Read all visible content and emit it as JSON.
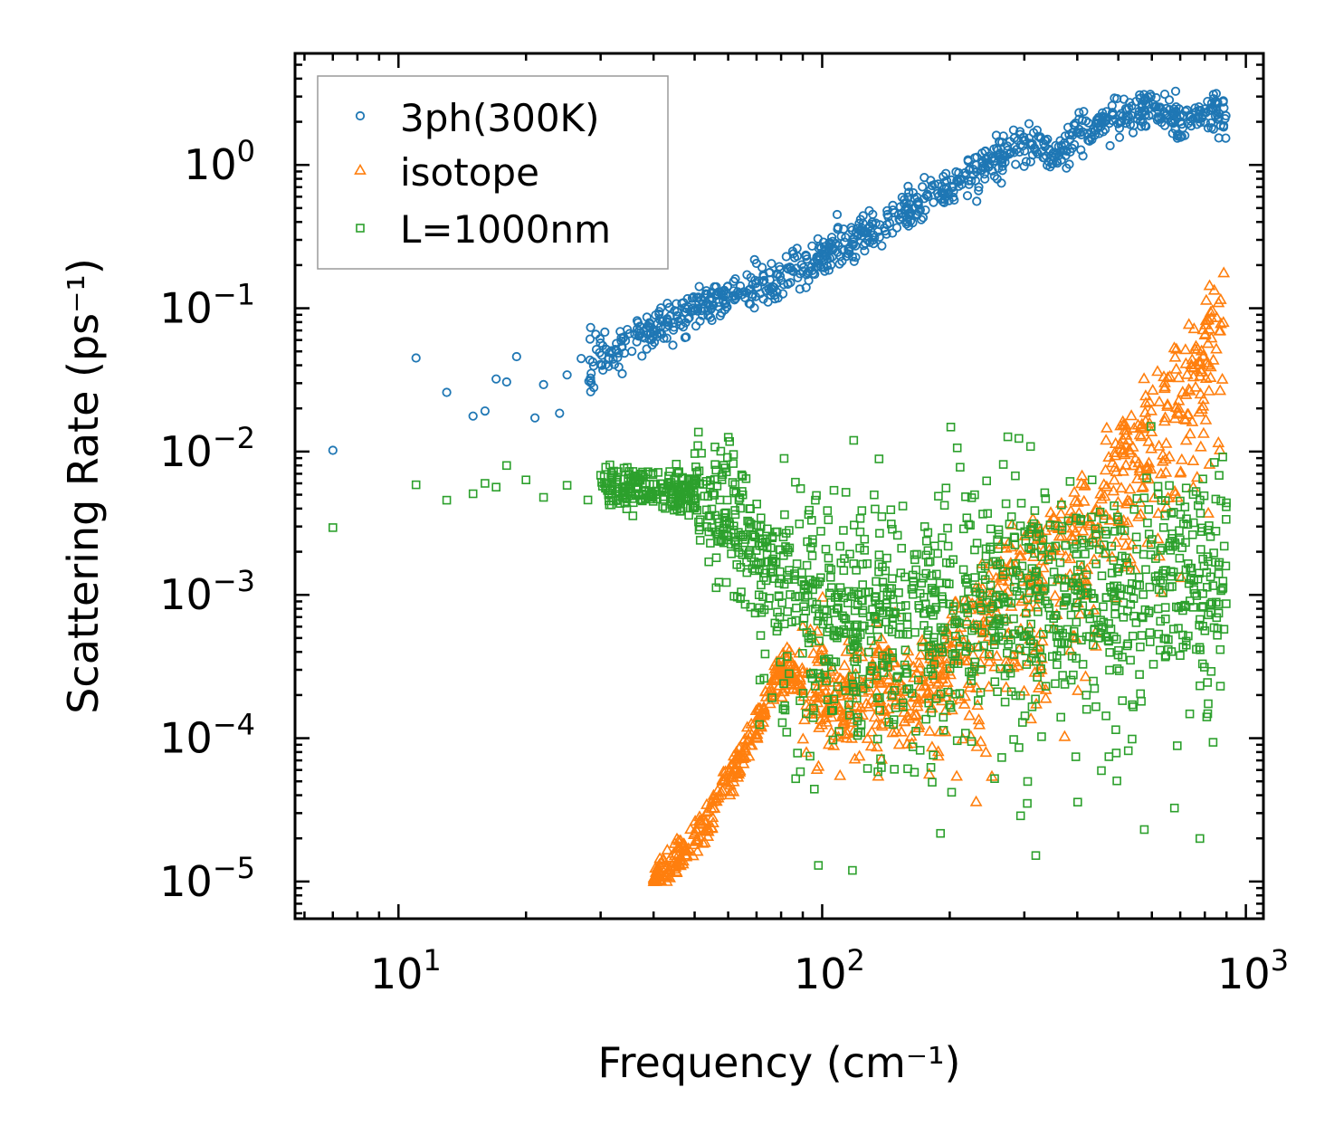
{
  "chart_data": {
    "type": "scatter",
    "xscale": "log",
    "yscale": "log",
    "xlabel": "Frequency (cm⁻¹)",
    "ylabel": "Scattering Rate (ps⁻¹)",
    "xlim": [
      5.7,
      1100
    ],
    "ylim": [
      5.5e-06,
      6.0
    ],
    "legend_position": "top-left",
    "x_ticks": [
      {
        "base": "10",
        "exp": "1",
        "value": 10
      },
      {
        "base": "10",
        "exp": "2",
        "value": 100
      },
      {
        "base": "10",
        "exp": "3",
        "value": 1000
      }
    ],
    "y_ticks": [
      {
        "base": "10",
        "exp": "0",
        "value": 1
      },
      {
        "base": "10",
        "exp": "−1",
        "value": 0.1
      },
      {
        "base": "10",
        "exp": "−2",
        "value": 0.01
      },
      {
        "base": "10",
        "exp": "−3",
        "value": 0.001
      },
      {
        "base": "10",
        "exp": "−4",
        "value": 0.0001
      },
      {
        "base": "10",
        "exp": "−5",
        "value": 1e-05
      }
    ],
    "series": [
      {
        "name": "3ph(300K)",
        "marker": "circle",
        "color": "#1f77b4",
        "trend_points": [
          [
            7,
            0.015
          ],
          [
            11,
            0.035
          ],
          [
            15,
            0.02
          ],
          [
            18,
            0.03
          ],
          [
            22,
            0.03
          ],
          [
            28,
            0.045
          ],
          [
            32,
            0.05
          ],
          [
            40,
            0.07
          ],
          [
            50,
            0.1
          ],
          [
            60,
            0.12
          ],
          [
            80,
            0.17
          ],
          [
            100,
            0.22
          ],
          [
            130,
            0.35
          ],
          [
            160,
            0.5
          ],
          [
            200,
            0.7
          ],
          [
            250,
            1.0
          ],
          [
            300,
            1.5
          ],
          [
            350,
            1.2
          ],
          [
            400,
            1.6
          ],
          [
            500,
            2.2
          ],
          [
            600,
            2.6
          ],
          [
            700,
            2.0
          ],
          [
            800,
            2.4
          ],
          [
            900,
            2.0
          ]
        ]
      },
      {
        "name": "isotope",
        "marker": "triangle",
        "color": "#ff7f0e",
        "trend_points": [
          [
            40,
            1e-05
          ],
          [
            50,
            2e-05
          ],
          [
            60,
            5e-05
          ],
          [
            70,
            0.00012
          ],
          [
            80,
            0.0003
          ],
          [
            100,
            0.0002
          ],
          [
            130,
            0.0002
          ],
          [
            160,
            0.0003
          ],
          [
            200,
            0.0006
          ],
          [
            250,
            0.002
          ],
          [
            300,
            0.003
          ],
          [
            400,
            0.005
          ],
          [
            500,
            0.02
          ],
          [
            600,
            0.03
          ],
          [
            700,
            0.05
          ],
          [
            800,
            0.1
          ],
          [
            880,
            0.24
          ]
        ]
      },
      {
        "name": "L=1000nm",
        "marker": "square",
        "color": "#2ca02c",
        "trend_points": [
          [
            7,
            0.0032
          ],
          [
            11,
            0.0063
          ],
          [
            15,
            0.0058
          ],
          [
            20,
            0.0058
          ],
          [
            30,
            0.0055
          ],
          [
            40,
            0.0055
          ],
          [
            50,
            0.005
          ],
          [
            60,
            0.003
          ],
          [
            80,
            0.0012
          ],
          [
            100,
            0.0009
          ],
          [
            130,
            0.0009
          ],
          [
            200,
            0.001
          ],
          [
            300,
            0.0011
          ],
          [
            400,
            0.0012
          ],
          [
            500,
            0.0013
          ],
          [
            700,
            0.0015
          ],
          [
            900,
            0.0015
          ]
        ]
      }
    ]
  }
}
